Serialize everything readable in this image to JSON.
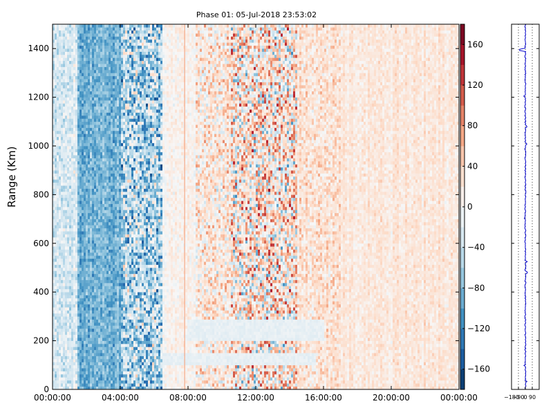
{
  "chart_data": [
    {
      "type": "heatmap",
      "title": "Phase 01: 05-Jul-2018 23:53:02",
      "xlabel": "",
      "ylabel": "Range (Km)",
      "x_ticks": [
        "00:00:00",
        "04:00:00",
        "08:00:00",
        "12:00:00",
        "16:00:00",
        "20:00:00",
        "00:00:00"
      ],
      "x_range_hours": [
        0,
        24
      ],
      "y_ticks": [
        0,
        200,
        400,
        600,
        800,
        1000,
        1200,
        1400
      ],
      "ylim": [
        0,
        1500
      ],
      "colorscale": "RdBu_r",
      "color_range": [
        -180,
        180
      ],
      "colorbar_ticks": [
        -160,
        -120,
        -80,
        -40,
        0,
        40,
        80,
        120,
        160
      ],
      "bands": [
        {
          "from_hour": 0.0,
          "to_hour": 1.5,
          "mean": -25,
          "noise": 45
        },
        {
          "from_hour": 1.5,
          "to_hour": 4.0,
          "mean": -85,
          "noise": 40
        },
        {
          "from_hour": 4.0,
          "to_hour": 6.5,
          "mean": -55,
          "noise": 110
        },
        {
          "from_hour": 6.5,
          "to_hour": 8.5,
          "mean": 5,
          "noise": 25
        },
        {
          "from_hour": 8.5,
          "to_hour": 10.5,
          "mean": 20,
          "noise": 70
        },
        {
          "from_hour": 10.5,
          "to_hour": 14.5,
          "mean": 20,
          "noise": 130
        },
        {
          "from_hour": 14.5,
          "to_hour": 17.0,
          "mean": 25,
          "noise": 45
        },
        {
          "from_hour": 17.0,
          "to_hour": 24.0,
          "mean": 20,
          "noise": 25
        }
      ],
      "features": [
        {
          "kind": "vertical_line",
          "hour": 7.8,
          "value": 70
        },
        {
          "kind": "horizontal_band",
          "from_hour": 6.5,
          "to_hour": 15.5,
          "from_km": 100,
          "to_km": 150,
          "value": -15
        },
        {
          "kind": "horizontal_band",
          "from_hour": 8.0,
          "to_hour": 16.0,
          "from_km": 200,
          "to_km": 290,
          "value": -15
        }
      ]
    },
    {
      "type": "line",
      "title": "",
      "xlabel": "",
      "ylabel": "",
      "x_ticks": [
        "−180",
        "−90",
        "0",
        "90"
      ],
      "xlim": [
        -180,
        180
      ],
      "ylim": [
        0,
        1500
      ],
      "grid_vertical": [
        -90,
        0,
        90
      ],
      "color": "#0000cc",
      "mean_value": 0,
      "spike": {
        "at_km": 1395,
        "value": -75
      }
    }
  ]
}
